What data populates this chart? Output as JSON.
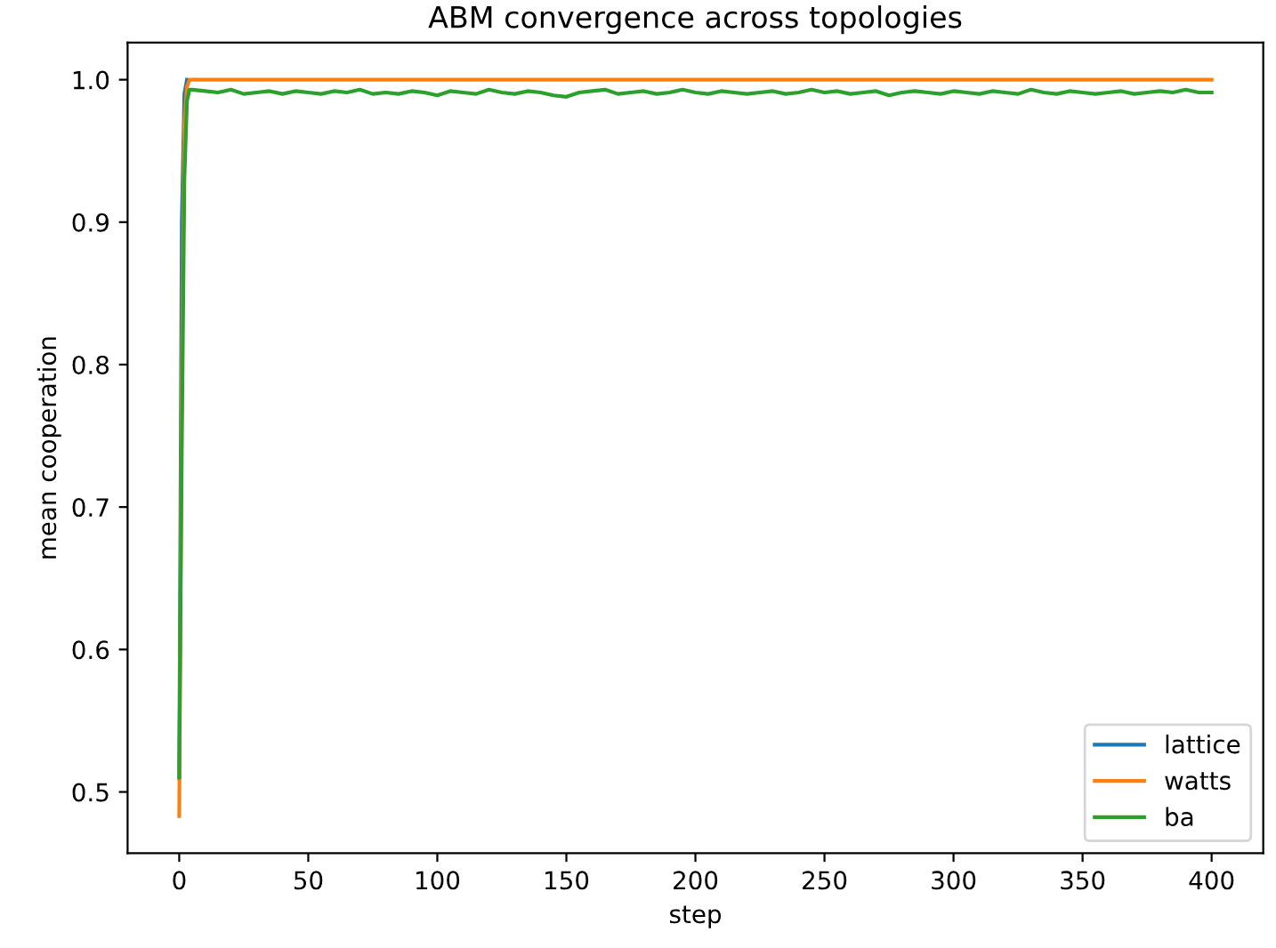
{
  "chart_data": {
    "type": "line",
    "title": "ABM convergence across topologies",
    "xlabel": "step",
    "ylabel": "mean cooperation",
    "xlim": [
      -20,
      420
    ],
    "xticks": [
      0,
      50,
      100,
      150,
      200,
      250,
      300,
      350,
      400
    ],
    "ylim": [
      0.457,
      1.026
    ],
    "yticks": [
      {
        "value": 0.5,
        "label": "0.5"
      },
      {
        "value": 0.6,
        "label": "0.6"
      },
      {
        "value": 0.7,
        "label": "0.7"
      },
      {
        "value": 0.8,
        "label": "0.8"
      },
      {
        "value": 0.9,
        "label": "0.9"
      },
      {
        "value": 1.0,
        "label": "1.0"
      }
    ],
    "grid": false,
    "legend": "bottom right",
    "marker": "none",
    "line_style": "solid",
    "series": [
      {
        "name": "lattice",
        "color": "#1f77b4",
        "x": [
          0,
          1,
          2,
          3
        ],
        "values": [
          0.51,
          0.9,
          0.99,
          1.0
        ]
      },
      {
        "name": "watts",
        "color": "#ff7f0e",
        "x": [
          0,
          1,
          2,
          3,
          4,
          400
        ],
        "values": [
          0.483,
          0.79,
          0.97,
          0.995,
          1.0,
          1.0
        ]
      },
      {
        "name": "ba",
        "color": "#2ca02c",
        "x": [
          0,
          1,
          2,
          3,
          4,
          5,
          10,
          15,
          20,
          25,
          30,
          35,
          40,
          45,
          50,
          55,
          60,
          65,
          70,
          75,
          80,
          85,
          90,
          95,
          100,
          105,
          110,
          115,
          120,
          125,
          130,
          135,
          140,
          145,
          150,
          155,
          160,
          165,
          170,
          175,
          180,
          185,
          190,
          195,
          200,
          205,
          210,
          215,
          220,
          225,
          230,
          235,
          240,
          245,
          250,
          255,
          260,
          265,
          270,
          275,
          280,
          285,
          290,
          295,
          300,
          305,
          310,
          315,
          320,
          325,
          330,
          335,
          340,
          345,
          350,
          355,
          360,
          365,
          370,
          375,
          380,
          385,
          390,
          395,
          400
        ],
        "values": [
          0.51,
          0.74,
          0.93,
          0.985,
          0.993,
          0.993,
          0.992,
          0.991,
          0.993,
          0.99,
          0.991,
          0.992,
          0.99,
          0.992,
          0.991,
          0.99,
          0.992,
          0.991,
          0.993,
          0.99,
          0.991,
          0.99,
          0.992,
          0.991,
          0.989,
          0.992,
          0.991,
          0.99,
          0.993,
          0.991,
          0.99,
          0.992,
          0.991,
          0.989,
          0.988,
          0.991,
          0.992,
          0.993,
          0.99,
          0.991,
          0.992,
          0.99,
          0.991,
          0.993,
          0.991,
          0.99,
          0.992,
          0.991,
          0.99,
          0.991,
          0.992,
          0.99,
          0.991,
          0.993,
          0.991,
          0.992,
          0.99,
          0.991,
          0.992,
          0.989,
          0.991,
          0.992,
          0.991,
          0.99,
          0.992,
          0.991,
          0.99,
          0.992,
          0.991,
          0.99,
          0.993,
          0.991,
          0.99,
          0.992,
          0.991,
          0.99,
          0.991,
          0.992,
          0.99,
          0.991,
          0.992,
          0.991,
          0.993,
          0.991,
          0.991
        ]
      }
    ]
  }
}
